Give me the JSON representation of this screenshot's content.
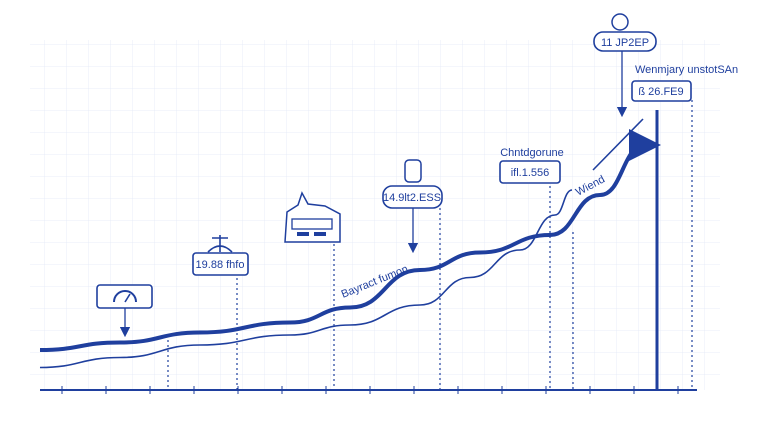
{
  "chart_data": {
    "type": "line",
    "title": "",
    "xlabel": "",
    "ylabel": "",
    "grid": true,
    "accent_color": "#1f3f9e",
    "background_color": "#f4f7fd",
    "series": [
      {
        "values": [
          6,
          9,
          13,
          17,
          23,
          38,
          45,
          52,
          68,
          88
        ]
      },
      {
        "values": [
          -1,
          3,
          8,
          12,
          16,
          24,
          35,
          46,
          60,
          70
        ]
      }
    ],
    "annotations": [
      {
        "label": "11 JP2EP",
        "icon": "emoji-face-icon"
      },
      {
        "label": "Wenmjary unstotSAn",
        "value": "ß 26.FE9"
      },
      {
        "label": "Chntdgorune",
        "value": "ifl.1.556"
      },
      {
        "label": "Wiend"
      },
      {
        "value": "14.9lt2.ESS",
        "icon": "money-hand-icon"
      },
      {
        "icon": "map-document-icon"
      },
      {
        "value": "19.88 fhfo",
        "icon": "plant-icon"
      },
      {
        "icon": "gauge-icon"
      },
      {
        "label": "Bayract fumon"
      }
    ]
  }
}
